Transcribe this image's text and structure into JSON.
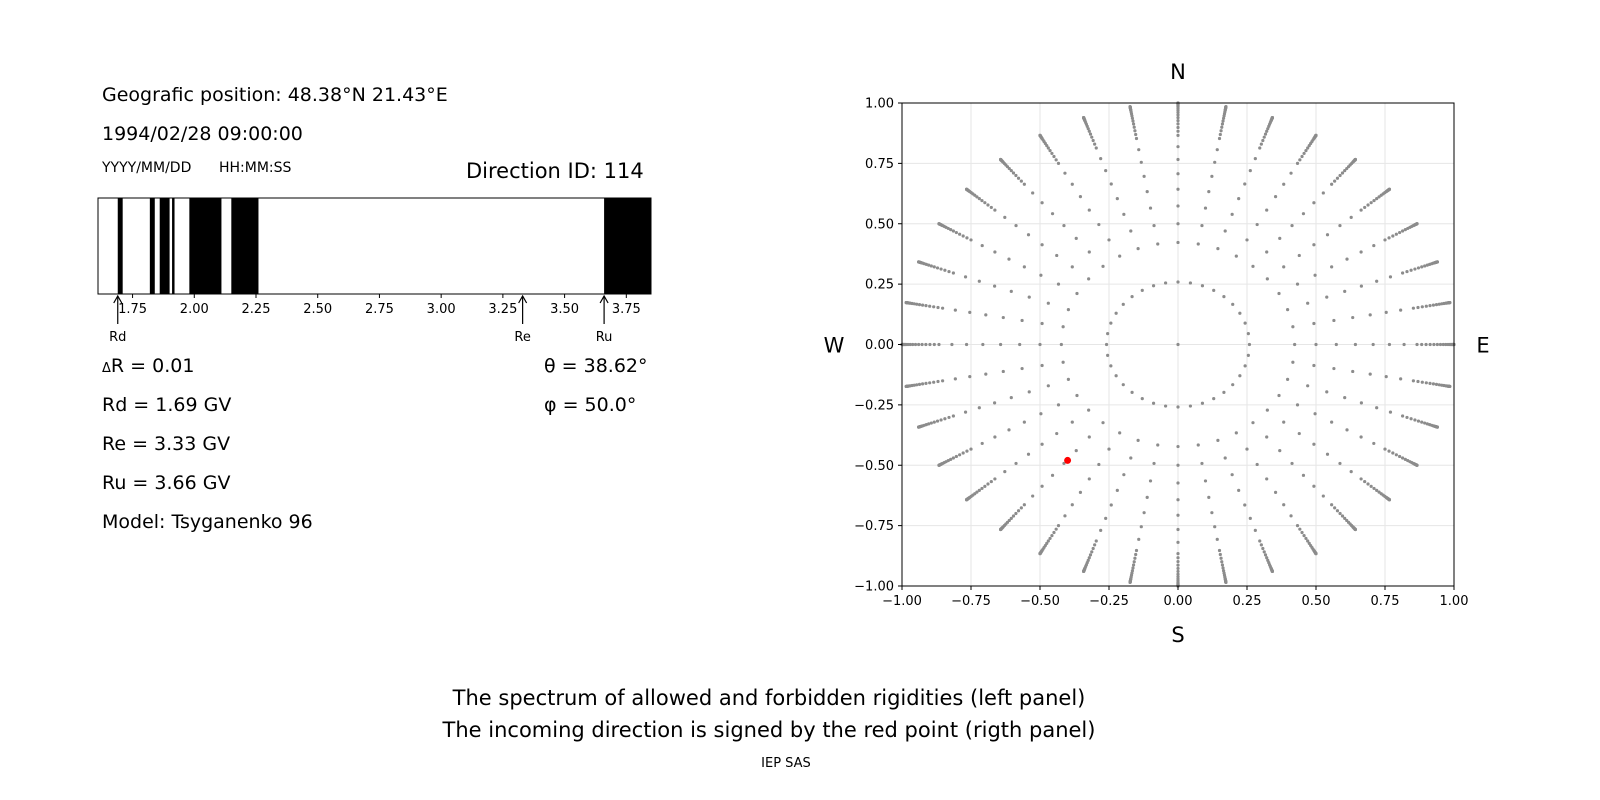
{
  "left_panel": {
    "position_label": "Geografic position: 48.38°N 21.43°E",
    "datetime": "1994/02/28 09:00:00",
    "date_format": "YYYY/MM/DD",
    "time_format": "HH:MM:SS",
    "direction_id": "Direction ID: 114",
    "delta_r": "R = 0.01",
    "delta_symbol": "Δ",
    "rd": "Rd = 1.69 GV",
    "re": "Re = 3.33 GV",
    "ru": "Ru = 3.66 GV",
    "model": "Model: Tsyganenko 96",
    "theta": "θ = 38.62°",
    "phi": "φ = 50.0°"
  },
  "footer": {
    "line1": "The spectrum of allowed and forbidden rigidities (left panel)",
    "line2": "The incoming direction is signed by the red point (rigth panel)",
    "credit": "IEP SAS"
  },
  "colors": {
    "forbidden": "#000000",
    "allowed": "#ffffff",
    "grid_points": "#8c8c8c",
    "selected_point": "#ff0000"
  },
  "chart_data": [
    {
      "type": "bar",
      "name": "rigidity-spectrum",
      "xlim": [
        1.61,
        3.85
      ],
      "xticks": [
        1.75,
        2.0,
        2.25,
        2.5,
        2.75,
        3.0,
        3.25,
        3.5,
        3.75
      ],
      "xtick_labels": [
        "1.75",
        "2.00",
        "2.25",
        "2.50",
        "2.75",
        "3.00",
        "3.25",
        "3.50",
        "3.75"
      ],
      "forbidden_bands": [
        [
          1.69,
          1.71
        ],
        [
          1.82,
          1.84
        ],
        [
          1.86,
          1.9
        ],
        [
          1.91,
          1.92
        ],
        [
          1.98,
          2.11
        ],
        [
          2.15,
          2.26
        ],
        [
          3.66,
          3.85
        ]
      ],
      "markers": [
        {
          "label": "Rd",
          "value": 1.69
        },
        {
          "label": "Re",
          "value": 3.33
        },
        {
          "label": "Ru",
          "value": 3.66
        }
      ]
    },
    {
      "type": "scatter",
      "name": "direction-map",
      "xlim": [
        -1.0,
        1.0
      ],
      "ylim": [
        -1.0,
        1.0
      ],
      "xticks": [
        -1.0,
        -0.75,
        -0.5,
        -0.25,
        0.0,
        0.25,
        0.5,
        0.75,
        1.0
      ],
      "yticks": [
        -1.0,
        -0.75,
        -0.5,
        -0.25,
        0.0,
        0.25,
        0.5,
        0.75,
        1.0
      ],
      "xtick_labels": [
        "−1.00",
        "−0.75",
        "−0.50",
        "−0.25",
        "0.00",
        "0.25",
        "0.50",
        "0.75",
        "1.00"
      ],
      "ytick_labels": [
        "−1.00",
        "−0.75",
        "−0.50",
        "−0.25",
        "0.00",
        "0.25",
        "0.50",
        "0.75",
        "1.00"
      ],
      "grid": true,
      "compass": {
        "north": "N",
        "south": "S",
        "east": "E",
        "west": "W"
      },
      "grid_points": {
        "azimuth_step_deg": 10,
        "zenith_angles_deg": [
          0,
          15,
          25,
          30,
          35,
          40,
          45,
          50,
          55,
          60,
          62,
          64,
          66,
          68,
          70,
          72,
          74,
          76,
          78,
          80,
          81,
          82,
          83,
          84,
          85,
          86,
          87,
          88,
          89,
          90
        ]
      },
      "selected_point": {
        "x": -0.4,
        "y": -0.48
      }
    }
  ]
}
